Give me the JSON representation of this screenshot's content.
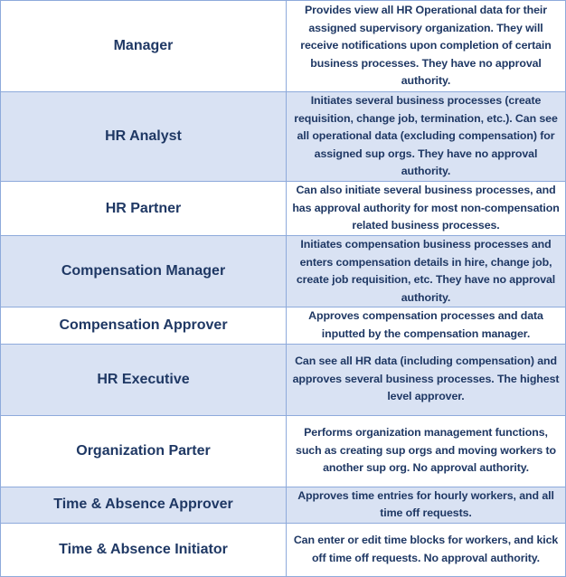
{
  "roles": [
    {
      "name": "Manager",
      "description": "Provides view all HR Operational data for their assigned supervisory organization. They will receive notifications upon completion of certain business processes. They have no approval authority.",
      "shaded": false
    },
    {
      "name": "HR Analyst",
      "description": "Initiates several business processes (create requisition, change job, termination, etc.). Can see all operational data (excluding compensation) for assigned sup orgs. They have no approval authority.",
      "shaded": true
    },
    {
      "name": "HR Partner",
      "description": "Can also initiate several business processes, and has approval authority for most non-compensation related business processes.",
      "shaded": false
    },
    {
      "name": "Compensation Manager",
      "description": "Initiates compensation business processes and enters compensation details in hire, change job, create job requisition, etc. They have no approval authority.",
      "shaded": true
    },
    {
      "name": "Compensation Approver",
      "description": "Approves compensation processes and data inputted by the compensation manager.",
      "shaded": false
    },
    {
      "name": "HR Executive",
      "description": "Can see all HR data (including compensation) and approves several business processes. The highest level approver.",
      "shaded": true
    },
    {
      "name": "Organization Parter",
      "description": "Performs organization management functions, such as creating sup orgs and moving workers to another sup org. No approval authority.",
      "shaded": false
    },
    {
      "name": "Time & Absence Approver",
      "description": "Approves time entries for hourly workers, and all time off requests.",
      "shaded": true
    },
    {
      "name": "Time & Absence Initiator",
      "description": "Can enter or edit time blocks for workers, and kick off time off requests. No approval authority.",
      "shaded": false
    }
  ],
  "colors": {
    "text": "#1f3864",
    "shade": "#d9e2f3",
    "border": "#8eaadb"
  }
}
